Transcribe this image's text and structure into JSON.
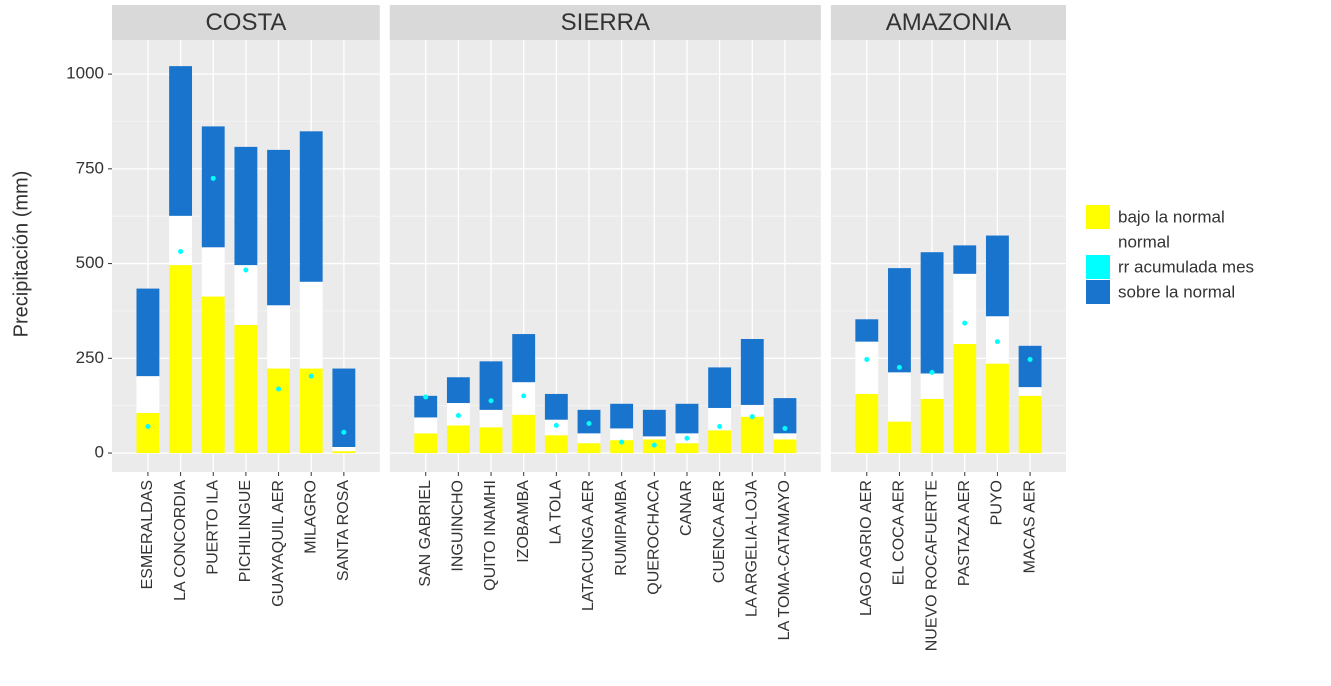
{
  "chart_data": {
    "type": "bar",
    "stacked": true,
    "y_label": "Precipitación (mm)",
    "ylim": [
      -50,
      1090
    ],
    "yticks": [
      0,
      250,
      500,
      750,
      1000
    ],
    "grid": true,
    "legend": "right",
    "series": [
      {
        "name": "bajo la normal",
        "color": "#ffff00",
        "mark": "bar"
      },
      {
        "name": "normal",
        "color": "#ffffff",
        "mark": "bar"
      },
      {
        "name": "rr acumulada mes",
        "color": "#00ffff",
        "mark": "point"
      },
      {
        "name": "sobre la normal",
        "color": "#1874cd",
        "mark": "bar"
      }
    ],
    "facets": [
      {
        "title": "COSTA",
        "categories": [
          "ESMERALDAS",
          "LA CONCORDIA",
          "PUERTO ILA",
          "PICHILINGUE",
          "GUAYAQUIL AER",
          "MILAGRO",
          "SANTA ROSA"
        ],
        "series_values": [
          [
            106,
            496,
            413,
            338,
            223,
            223,
            5
          ],
          [
            97,
            130,
            130,
            158,
            167,
            229,
            11
          ],
          [
            70,
            532,
            725,
            483,
            169,
            203,
            55
          ],
          [
            231,
            395,
            319,
            312,
            410,
            397,
            207
          ]
        ]
      },
      {
        "title": "SIERRA",
        "categories": [
          "SAN GABRIEL",
          "INGUINCHO",
          "QUITO INAMHI",
          "IZOBAMBA",
          "LA TOLA",
          "LATACUNGA AER",
          "RUMIPAMBA",
          "QUEROCHACA",
          "CANAR",
          "CUENCA AER",
          "LA ARGELIA-LOJA",
          "LA TOMA-CATAMAYO"
        ],
        "series_values": [
          [
            52,
            73,
            68,
            101,
            47,
            26,
            34,
            36,
            26,
            60,
            96,
            36
          ],
          [
            42,
            59,
            46,
            86,
            41,
            26,
            31,
            8,
            26,
            59,
            31,
            16
          ],
          [
            148,
            99,
            138,
            151,
            73,
            78,
            29,
            21,
            39,
            70,
            96,
            65
          ],
          [
            57,
            68,
            128,
            127,
            68,
            62,
            65,
            70,
            78,
            107,
            174,
            93
          ]
        ]
      },
      {
        "title": "AMAZONIA",
        "categories": [
          "LAGO AGRIO AER",
          "EL COCA AER",
          "NUEVO ROCAFUERTE",
          "PASTAZA AER",
          "PUYO",
          "MACAS AER"
        ],
        "series_values": [
          [
            156,
            83,
            143,
            288,
            236,
            151
          ],
          [
            138,
            130,
            67,
            185,
            125,
            23
          ],
          [
            247,
            226,
            213,
            343,
            294,
            247
          ],
          [
            59,
            275,
            320,
            75,
            213,
            109
          ]
        ]
      }
    ]
  }
}
